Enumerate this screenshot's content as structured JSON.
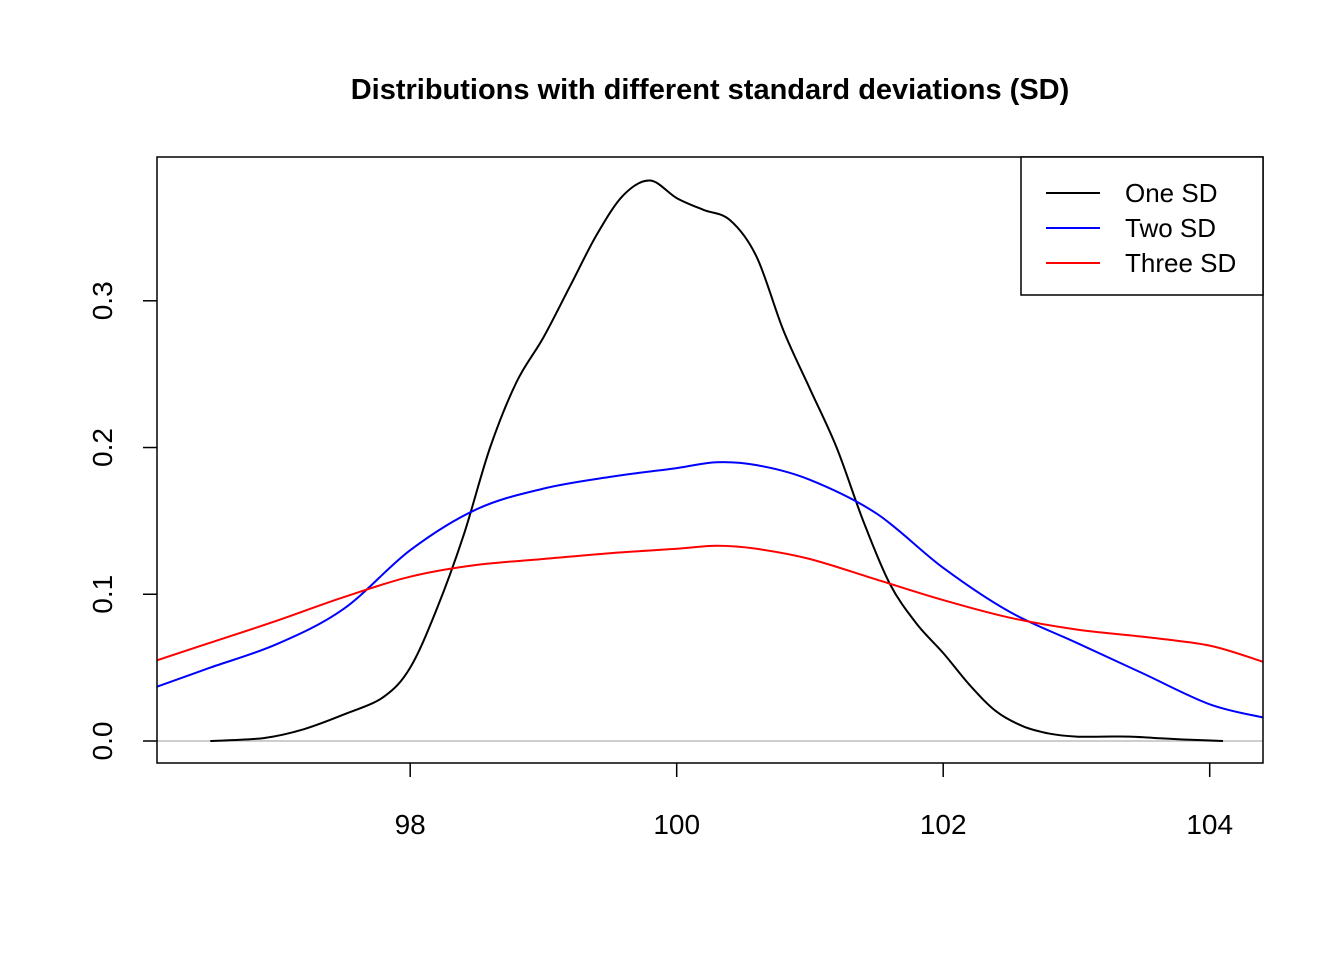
{
  "chart_data": {
    "type": "line",
    "title": "Distributions with different standard deviations (SD)",
    "xlabel": "",
    "ylabel": "",
    "xlim": [
      96.1,
      104.4
    ],
    "ylim": [
      -0.015,
      0.398
    ],
    "x_ticks": [
      {
        "value": 98,
        "label": "98"
      },
      {
        "value": 100,
        "label": "100"
      },
      {
        "value": 102,
        "label": "102"
      },
      {
        "value": 104,
        "label": "104"
      }
    ],
    "y_ticks": [
      {
        "value": 0.0,
        "label": "0.0"
      },
      {
        "value": 0.1,
        "label": "0.1"
      },
      {
        "value": 0.2,
        "label": "0.2"
      },
      {
        "value": 0.3,
        "label": "0.3"
      }
    ],
    "baseline": {
      "value": 0,
      "color": "#bebebe"
    },
    "legend": {
      "position": "top-right"
    },
    "series": [
      {
        "name": "One SD",
        "color": "#000000",
        "points": [
          [
            96.5,
            0.0
          ],
          [
            96.9,
            0.002
          ],
          [
            97.2,
            0.008
          ],
          [
            97.5,
            0.018
          ],
          [
            97.8,
            0.03
          ],
          [
            98.0,
            0.05
          ],
          [
            98.2,
            0.09
          ],
          [
            98.4,
            0.14
          ],
          [
            98.6,
            0.2
          ],
          [
            98.8,
            0.245
          ],
          [
            99.0,
            0.275
          ],
          [
            99.2,
            0.31
          ],
          [
            99.4,
            0.345
          ],
          [
            99.6,
            0.372
          ],
          [
            99.8,
            0.382
          ],
          [
            100.0,
            0.37
          ],
          [
            100.2,
            0.362
          ],
          [
            100.4,
            0.355
          ],
          [
            100.6,
            0.33
          ],
          [
            100.8,
            0.28
          ],
          [
            101.0,
            0.24
          ],
          [
            101.2,
            0.2
          ],
          [
            101.4,
            0.15
          ],
          [
            101.6,
            0.107
          ],
          [
            101.8,
            0.08
          ],
          [
            102.0,
            0.06
          ],
          [
            102.2,
            0.038
          ],
          [
            102.4,
            0.02
          ],
          [
            102.6,
            0.01
          ],
          [
            102.8,
            0.005
          ],
          [
            103.0,
            0.003
          ],
          [
            103.2,
            0.003
          ],
          [
            103.4,
            0.003
          ],
          [
            103.6,
            0.002
          ],
          [
            103.8,
            0.001
          ],
          [
            104.1,
            0.0
          ]
        ]
      },
      {
        "name": "Two SD",
        "color": "#0000ff",
        "points": [
          [
            96.1,
            0.037
          ],
          [
            96.5,
            0.05
          ],
          [
            97.0,
            0.066
          ],
          [
            97.5,
            0.09
          ],
          [
            98.0,
            0.13
          ],
          [
            98.5,
            0.158
          ],
          [
            99.0,
            0.172
          ],
          [
            99.5,
            0.18
          ],
          [
            100.0,
            0.186
          ],
          [
            100.3,
            0.19
          ],
          [
            100.6,
            0.188
          ],
          [
            101.0,
            0.178
          ],
          [
            101.5,
            0.155
          ],
          [
            102.0,
            0.118
          ],
          [
            102.5,
            0.088
          ],
          [
            103.0,
            0.067
          ],
          [
            103.5,
            0.046
          ],
          [
            104.0,
            0.025
          ],
          [
            104.4,
            0.016
          ]
        ]
      },
      {
        "name": "Three SD",
        "color": "#ff0000",
        "points": [
          [
            96.1,
            0.055
          ],
          [
            96.5,
            0.067
          ],
          [
            97.0,
            0.082
          ],
          [
            97.5,
            0.098
          ],
          [
            98.0,
            0.112
          ],
          [
            98.5,
            0.12
          ],
          [
            99.0,
            0.124
          ],
          [
            99.5,
            0.128
          ],
          [
            100.0,
            0.131
          ],
          [
            100.3,
            0.133
          ],
          [
            100.6,
            0.131
          ],
          [
            101.0,
            0.124
          ],
          [
            101.5,
            0.11
          ],
          [
            102.0,
            0.096
          ],
          [
            102.5,
            0.084
          ],
          [
            103.0,
            0.076
          ],
          [
            103.5,
            0.071
          ],
          [
            104.0,
            0.065
          ],
          [
            104.4,
            0.054
          ]
        ]
      }
    ]
  }
}
